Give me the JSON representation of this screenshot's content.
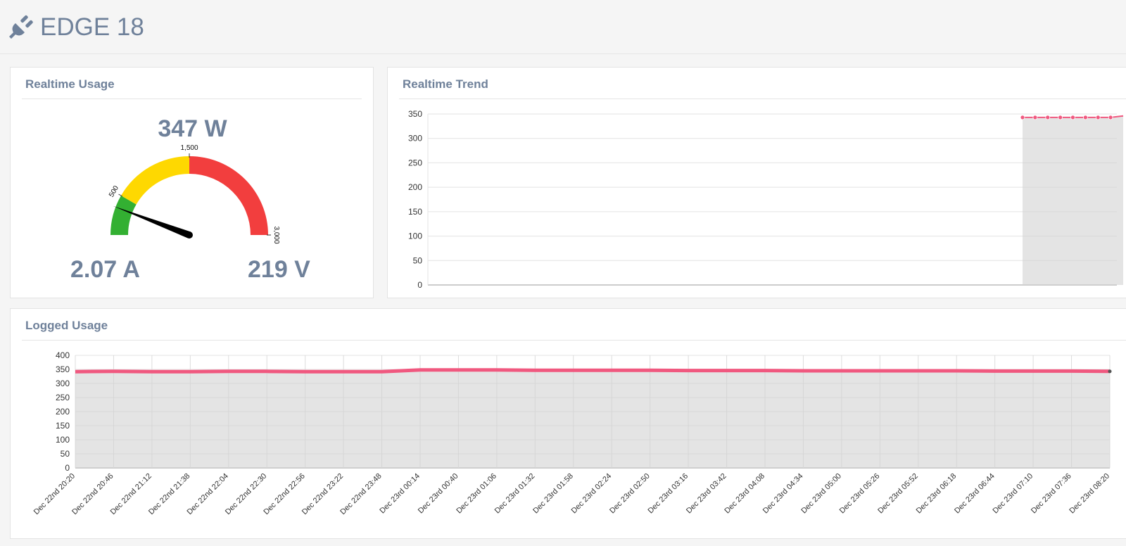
{
  "header": {
    "title": "EDGE 18",
    "icon": "plug-icon"
  },
  "realtime_usage": {
    "title": "Realtime Usage",
    "power": "347 W",
    "current": "2.07 A",
    "voltage": "219 V",
    "gauge": {
      "min": 0,
      "max": 3000,
      "value": 347,
      "tick_labels": [
        "500",
        "1,500",
        "3,000"
      ],
      "bands": [
        {
          "from": 0,
          "to": 500,
          "color": "#33b032"
        },
        {
          "from": 500,
          "to": 1500,
          "color": "#fed801"
        },
        {
          "from": 1500,
          "to": 3000,
          "color": "#f23e3e"
        }
      ]
    }
  },
  "realtime_trend": {
    "title": "Realtime Trend"
  },
  "logged_usage": {
    "title": "Logged Usage"
  },
  "chart_data": [
    {
      "type": "area",
      "title": "Realtime Trend",
      "xlabel": "",
      "ylabel": "",
      "ylim": [
        0,
        350
      ],
      "yticks": [
        "0",
        "50",
        "100",
        "150",
        "200",
        "250",
        "300",
        "350"
      ],
      "grid": true,
      "series": [
        {
          "values": [
            343,
            343,
            343,
            343,
            343,
            343,
            343,
            343,
            346
          ],
          "color": "#f0587f"
        }
      ]
    },
    {
      "type": "area",
      "title": "Logged Usage",
      "xlabel": "",
      "ylabel": "",
      "ylim": [
        0,
        400
      ],
      "yticks": [
        "0",
        "50",
        "100",
        "150",
        "200",
        "250",
        "300",
        "350",
        "400"
      ],
      "grid": true,
      "categories": [
        "Dec 22nd 20:20",
        "Dec 22nd 20:46",
        "Dec 22nd 21:12",
        "Dec 22nd 21:38",
        "Dec 22nd 22:04",
        "Dec 22nd 22:30",
        "Dec 22nd 22:56",
        "Dec 22nd 23:22",
        "Dec 22nd 23:48",
        "Dec 23rd 00:14",
        "Dec 23rd 00:40",
        "Dec 23rd 01:06",
        "Dec 23rd 01:32",
        "Dec 23rd 01:58",
        "Dec 23rd 02:24",
        "Dec 23rd 02:50",
        "Dec 23rd 03:16",
        "Dec 23rd 03:42",
        "Dec 23rd 04:08",
        "Dec 23rd 04:34",
        "Dec 23rd 05:00",
        "Dec 23rd 05:26",
        "Dec 23rd 05:52",
        "Dec 23rd 06:18",
        "Dec 23rd 06:44",
        "Dec 23rd 07:10",
        "Dec 23rd 07:36",
        "Dec 23rd 08:20"
      ],
      "series": [
        {
          "values": [
            342,
            343,
            342,
            342,
            343,
            343,
            342,
            342,
            342,
            348,
            348,
            348,
            347,
            347,
            347,
            347,
            346,
            346,
            346,
            345,
            345,
            345,
            345,
            345,
            344,
            344,
            344,
            343
          ],
          "color": "#f0587f"
        }
      ]
    }
  ]
}
